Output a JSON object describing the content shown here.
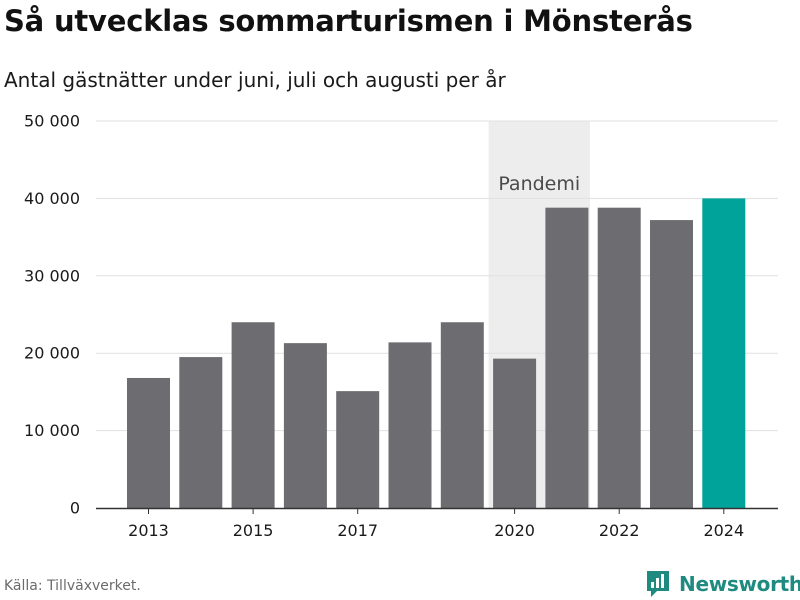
{
  "title": "Så utvecklas sommarturismen i Mönsterås",
  "subtitle": "Antal gästnätter under juni, juli och augusti per år",
  "source": "Källa: Tillväxverket.",
  "brand": "Newsworthy",
  "colors": {
    "bar": "#6d6c70",
    "highlight": "#00a39a",
    "pandemic_band": "#ededed",
    "grid": "#e1e1e1",
    "brand": "#1f8a80"
  },
  "chart_data": {
    "type": "bar",
    "categories": [
      "2013",
      "2014",
      "2015",
      "2016",
      "2017",
      "2018",
      "2019",
      "2020",
      "2021",
      "2022",
      "2023",
      "2024"
    ],
    "values": [
      16800,
      19500,
      24000,
      21300,
      15100,
      21400,
      24000,
      19300,
      38800,
      38800,
      37200,
      40000
    ],
    "highlight_index": 11,
    "x_tick_labels": [
      "2013",
      "",
      "2015",
      "",
      "2017",
      "",
      "",
      "2020",
      "",
      "2022",
      "",
      "2024"
    ],
    "ylim": [
      0,
      50000
    ],
    "y_ticks": [
      0,
      10000,
      20000,
      30000,
      40000,
      50000
    ],
    "y_tick_labels": [
      "0",
      "10 000",
      "20 000",
      "30 000",
      "40 000",
      "50 000"
    ],
    "grid": true,
    "annotation": {
      "label": "Pandemi",
      "from_category": "2020",
      "to_category": "2021"
    },
    "xlabel": "",
    "ylabel": ""
  }
}
